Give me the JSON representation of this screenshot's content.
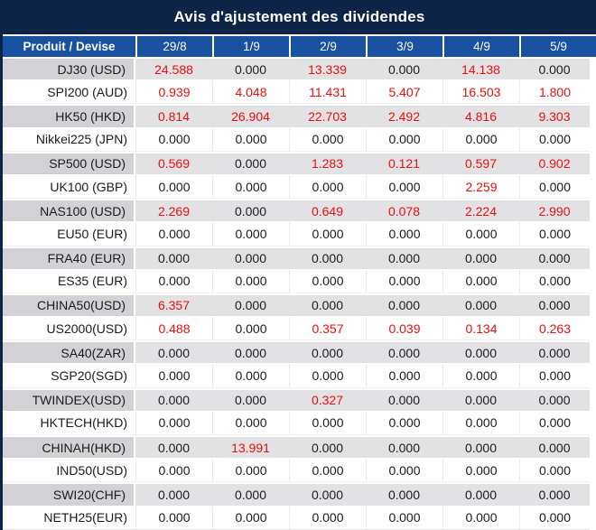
{
  "title": "Avis d'ajustement des dividendes",
  "colors": {
    "title_bg": "#0d2347",
    "header_bg": "#17519f",
    "value_red": "#e8100f",
    "row_gray": "#e2e2e5",
    "product_gray": "#d2d2d6",
    "text_dark": "#1b1b1b",
    "header_text": "#ffffff"
  },
  "table": {
    "zero_value": "0.000",
    "columns": [
      "Produit / Devise",
      "29/8",
      "1/9",
      "2/9",
      "3/9",
      "4/9",
      "5/9"
    ],
    "rows": [
      {
        "product": "DJ30 (USD)",
        "values": [
          "24.588",
          "0.000",
          "13.339",
          "0.000",
          "14.138",
          "0.000"
        ]
      },
      {
        "product": "SPI200 (AUD)",
        "values": [
          "0.939",
          "4.048",
          "11.431",
          "5.407",
          "16.503",
          "1.800"
        ]
      },
      {
        "product": "HK50 (HKD)",
        "values": [
          "0.814",
          "26.904",
          "22.703",
          "2.492",
          "4.816",
          "9.303"
        ]
      },
      {
        "product": "Nikkei225 (JPN)",
        "values": [
          "0.000",
          "0.000",
          "0.000",
          "0.000",
          "0.000",
          "0.000"
        ]
      },
      {
        "product": "SP500 (USD)",
        "values": [
          "0.569",
          "0.000",
          "1.283",
          "0.121",
          "0.597",
          "0.902"
        ]
      },
      {
        "product": "UK100 (GBP)",
        "values": [
          "0.000",
          "0.000",
          "0.000",
          "0.000",
          "2.259",
          "0.000"
        ]
      },
      {
        "product": "NAS100 (USD)",
        "values": [
          "2.269",
          "0.000",
          "0.649",
          "0.078",
          "2.224",
          "2.990"
        ]
      },
      {
        "product": "EU50 (EUR)",
        "values": [
          "0.000",
          "0.000",
          "0.000",
          "0.000",
          "0.000",
          "0.000"
        ]
      },
      {
        "product": "FRA40 (EUR)",
        "values": [
          "0.000",
          "0.000",
          "0.000",
          "0.000",
          "0.000",
          "0.000"
        ]
      },
      {
        "product": "ES35 (EUR)",
        "values": [
          "0.000",
          "0.000",
          "0.000",
          "0.000",
          "0.000",
          "0.000"
        ]
      },
      {
        "product": "CHINA50(USD)",
        "values": [
          "6.357",
          "0.000",
          "0.000",
          "0.000",
          "0.000",
          "0.000"
        ]
      },
      {
        "product": "US2000(USD)",
        "values": [
          "0.488",
          "0.000",
          "0.357",
          "0.039",
          "0.134",
          "0.263"
        ]
      },
      {
        "product": "SA40(ZAR)",
        "values": [
          "0.000",
          "0.000",
          "0.000",
          "0.000",
          "0.000",
          "0.000"
        ]
      },
      {
        "product": "SGP20(SGD)",
        "values": [
          "0.000",
          "0.000",
          "0.000",
          "0.000",
          "0.000",
          "0.000"
        ]
      },
      {
        "product": "TWINDEX(USD)",
        "values": [
          "0.000",
          "0.000",
          "0.327",
          "0.000",
          "0.000",
          "0.000"
        ]
      },
      {
        "product": "HKTECH(HKD)",
        "values": [
          "0.000",
          "0.000",
          "0.000",
          "0.000",
          "0.000",
          "0.000"
        ]
      },
      {
        "product": "CHINAH(HKD)",
        "values": [
          "0.000",
          "13.991",
          "0.000",
          "0.000",
          "0.000",
          "0.000"
        ]
      },
      {
        "product": "IND50(USD)",
        "values": [
          "0.000",
          "0.000",
          "0.000",
          "0.000",
          "0.000",
          "0.000"
        ]
      },
      {
        "product": "SWI20(CHF)",
        "values": [
          "0.000",
          "0.000",
          "0.000",
          "0.000",
          "0.000",
          "0.000"
        ]
      },
      {
        "product": "NETH25(EUR)",
        "values": [
          "0.000",
          "0.000",
          "0.000",
          "0.000",
          "0.000",
          "0.000"
        ]
      }
    ]
  }
}
